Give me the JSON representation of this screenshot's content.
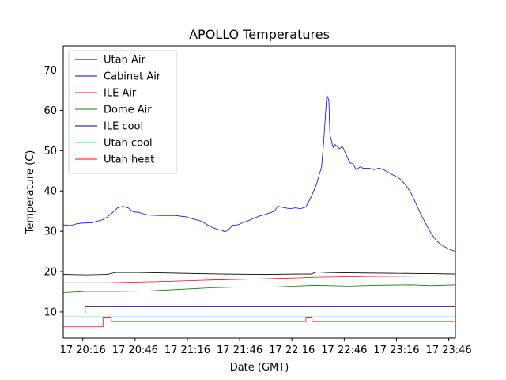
{
  "chart_data": {
    "type": "line",
    "title": "APOLLO Temperatures",
    "xlabel": "Date (GMT)",
    "ylabel": "Temperature (C)",
    "xlim": [
      20.08,
      23.83
    ],
    "ylim": [
      3.5,
      76
    ],
    "x_ticks": [
      {
        "value": 20.2667,
        "label": "17 20:16"
      },
      {
        "value": 20.7667,
        "label": "17 20:46"
      },
      {
        "value": 21.2667,
        "label": "17 21:16"
      },
      {
        "value": 21.7667,
        "label": "17 21:46"
      },
      {
        "value": 22.2667,
        "label": "17 22:16"
      },
      {
        "value": 22.7667,
        "label": "17 22:46"
      },
      {
        "value": 23.2667,
        "label": "17 23:16"
      },
      {
        "value": 23.7667,
        "label": "17 23:46"
      }
    ],
    "y_ticks": [
      {
        "value": 10,
        "label": "10"
      },
      {
        "value": 20,
        "label": "20"
      },
      {
        "value": 30,
        "label": "30"
      },
      {
        "value": 40,
        "label": "40"
      },
      {
        "value": 50,
        "label": "50"
      },
      {
        "value": 60,
        "label": "60"
      },
      {
        "value": 70,
        "label": "70"
      }
    ],
    "legend_position": "top-left",
    "series": [
      {
        "name": "Utah Air",
        "color": "#000000",
        "step": false,
        "points": [
          [
            20.08,
            19.3
          ],
          [
            20.3,
            19.2
          ],
          [
            20.5,
            19.3
          ],
          [
            20.58,
            19.8
          ],
          [
            20.8,
            19.8
          ],
          [
            21.2,
            19.6
          ],
          [
            21.6,
            19.4
          ],
          [
            22.0,
            19.3
          ],
          [
            22.3,
            19.4
          ],
          [
            22.45,
            19.4
          ],
          [
            22.5,
            19.9
          ],
          [
            22.6,
            19.8
          ],
          [
            22.8,
            19.7
          ],
          [
            23.2,
            19.6
          ],
          [
            23.6,
            19.5
          ],
          [
            23.83,
            19.4
          ]
        ]
      },
      {
        "name": "Cabinet Air",
        "color": "#0000ff",
        "step": false,
        "points": [
          [
            20.08,
            31.6
          ],
          [
            20.15,
            31.4
          ],
          [
            20.2,
            31.8
          ],
          [
            20.25,
            32.0
          ],
          [
            20.35,
            32.1
          ],
          [
            20.45,
            32.8
          ],
          [
            20.5,
            33.5
          ],
          [
            20.55,
            34.6
          ],
          [
            20.6,
            35.8
          ],
          [
            20.65,
            36.2
          ],
          [
            20.7,
            35.8
          ],
          [
            20.75,
            34.8
          ],
          [
            20.8,
            34.7
          ],
          [
            20.85,
            34.3
          ],
          [
            20.9,
            34.0
          ],
          [
            21.0,
            33.9
          ],
          [
            21.15,
            33.9
          ],
          [
            21.25,
            33.6
          ],
          [
            21.3,
            33.2
          ],
          [
            21.4,
            32.5
          ],
          [
            21.45,
            31.7
          ],
          [
            21.5,
            31.0
          ],
          [
            21.55,
            30.5
          ],
          [
            21.6,
            30.2
          ],
          [
            21.62,
            29.9
          ],
          [
            21.65,
            30.1
          ],
          [
            21.7,
            31.5
          ],
          [
            21.75,
            31.6
          ],
          [
            21.8,
            32.2
          ],
          [
            21.85,
            32.6
          ],
          [
            21.9,
            33.2
          ],
          [
            21.95,
            33.7
          ],
          [
            22.0,
            34.1
          ],
          [
            22.05,
            34.5
          ],
          [
            22.1,
            35.0
          ],
          [
            22.13,
            36.2
          ],
          [
            22.2,
            35.8
          ],
          [
            22.25,
            35.6
          ],
          [
            22.3,
            35.8
          ],
          [
            22.35,
            35.6
          ],
          [
            22.4,
            36.0
          ],
          [
            22.45,
            38.5
          ],
          [
            22.5,
            41.5
          ],
          [
            22.55,
            46.0
          ],
          [
            22.57,
            52.0
          ],
          [
            22.59,
            60.0
          ],
          [
            22.6,
            63.8
          ],
          [
            22.62,
            62.5
          ],
          [
            22.63,
            54.0
          ],
          [
            22.66,
            50.8
          ],
          [
            22.68,
            51.5
          ],
          [
            22.72,
            50.5
          ],
          [
            22.75,
            51.0
          ],
          [
            22.78,
            49.3
          ],
          [
            22.82,
            47.0
          ],
          [
            22.85,
            46.8
          ],
          [
            22.88,
            45.3
          ],
          [
            22.92,
            46.0
          ],
          [
            22.95,
            45.6
          ],
          [
            23.0,
            45.7
          ],
          [
            23.05,
            45.3
          ],
          [
            23.1,
            45.7
          ],
          [
            23.15,
            45.2
          ],
          [
            23.2,
            44.4
          ],
          [
            23.25,
            43.8
          ],
          [
            23.3,
            43.0
          ],
          [
            23.35,
            41.6
          ],
          [
            23.4,
            39.8
          ],
          [
            23.45,
            37.0
          ],
          [
            23.5,
            34.2
          ],
          [
            23.55,
            31.7
          ],
          [
            23.6,
            29.4
          ],
          [
            23.65,
            27.6
          ],
          [
            23.7,
            26.5
          ],
          [
            23.75,
            25.8
          ],
          [
            23.8,
            25.2
          ],
          [
            23.83,
            25.0
          ]
        ]
      },
      {
        "name": "ILE Air",
        "color": "#ff0000",
        "step": false,
        "points": [
          [
            20.08,
            17.2
          ],
          [
            20.5,
            17.2
          ],
          [
            21.0,
            17.5
          ],
          [
            21.5,
            17.9
          ],
          [
            22.0,
            18.2
          ],
          [
            22.3,
            18.4
          ],
          [
            22.5,
            18.6
          ],
          [
            23.0,
            18.8
          ],
          [
            23.5,
            18.9
          ],
          [
            23.83,
            18.9
          ]
        ]
      },
      {
        "name": "Dome Air",
        "color": "#008000",
        "step": false,
        "points": [
          [
            20.08,
            14.8
          ],
          [
            20.3,
            15.1
          ],
          [
            20.6,
            15.1
          ],
          [
            20.9,
            15.2
          ],
          [
            21.2,
            15.6
          ],
          [
            21.5,
            16.0
          ],
          [
            21.8,
            16.2
          ],
          [
            22.1,
            16.2
          ],
          [
            22.3,
            16.4
          ],
          [
            22.5,
            16.6
          ],
          [
            22.8,
            16.4
          ],
          [
            23.1,
            16.6
          ],
          [
            23.4,
            16.7
          ],
          [
            23.6,
            16.5
          ],
          [
            23.83,
            16.7
          ]
        ]
      },
      {
        "name": "ILE cool",
        "color": "#000080",
        "step": true,
        "points": [
          [
            20.08,
            9.5
          ],
          [
            20.29,
            9.5
          ],
          [
            20.29,
            11.3
          ],
          [
            23.83,
            11.3
          ]
        ]
      },
      {
        "name": "Utah cool",
        "color": "#00e5e5",
        "step": false,
        "points": [
          [
            20.08,
            8.8
          ],
          [
            23.83,
            8.8
          ]
        ]
      },
      {
        "name": "Utah heat",
        "color": "#ff0000",
        "step": true,
        "points": [
          [
            20.08,
            6.3
          ],
          [
            20.46,
            6.3
          ],
          [
            20.46,
            8.5
          ],
          [
            20.54,
            8.5
          ],
          [
            20.54,
            7.6
          ],
          [
            22.4,
            7.6
          ],
          [
            22.4,
            8.5
          ],
          [
            22.46,
            8.5
          ],
          [
            22.46,
            7.6
          ],
          [
            23.83,
            7.6
          ]
        ]
      }
    ]
  }
}
